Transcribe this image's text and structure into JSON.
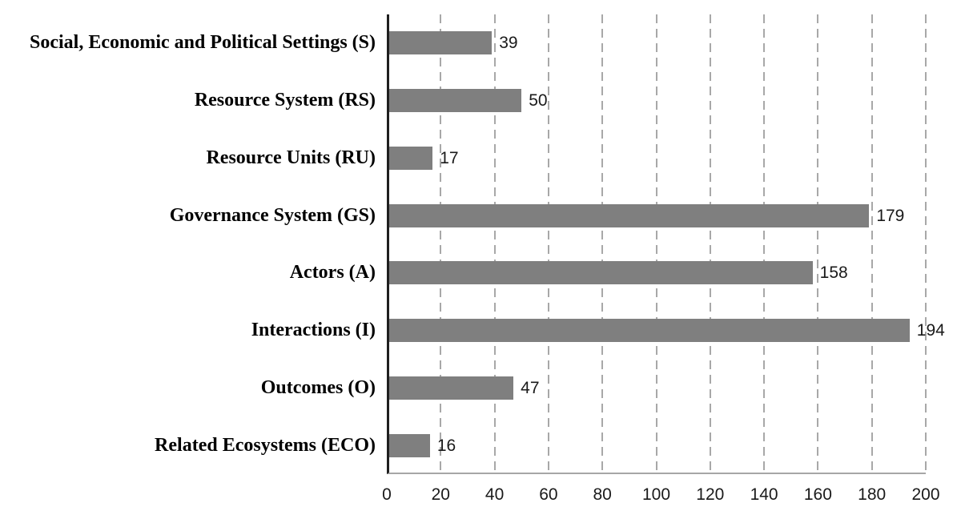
{
  "chart_data": {
    "type": "bar",
    "orientation": "horizontal",
    "title": "",
    "xlabel": "",
    "ylabel": "",
    "categories": [
      "Social, Economic and Political Settings (S)",
      "Resource System (RS)",
      "Resource Units (RU)",
      "Governance System (GS)",
      "Actors (A)",
      "Interactions (I)",
      "Outcomes (O)",
      "Related Ecosystems (ECO)"
    ],
    "values": [
      39,
      50,
      17,
      179,
      158,
      194,
      47,
      16
    ],
    "data_labels": [
      "39",
      "50",
      "17",
      "179",
      "158",
      "194",
      "47",
      "16"
    ],
    "xlim": [
      0,
      200
    ],
    "xticks": [
      0,
      20,
      40,
      60,
      80,
      100,
      120,
      140,
      160,
      180,
      200
    ],
    "grid": "vertical-dashed",
    "legend": "none",
    "colors": {
      "bar": "#7f7f7f",
      "gridline": "#a8a8a8",
      "y_axis_line": "#1f1f1f",
      "x_axis_line": "#a6a6a6",
      "text": "#000000",
      "value_text": "#1a1a1a"
    }
  }
}
